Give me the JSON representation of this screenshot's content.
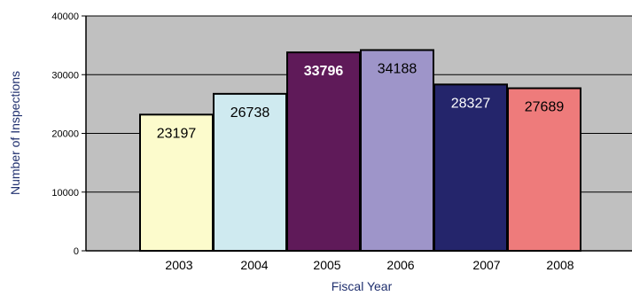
{
  "chart_data": {
    "type": "bar",
    "title": "",
    "xlabel": "Fiscal Year",
    "ylabel": "Number of Inspections",
    "categories": [
      "2003",
      "2004",
      "2005",
      "2006",
      "2007",
      "2008"
    ],
    "values": [
      23197,
      26738,
      33796,
      34188,
      28327,
      27689
    ],
    "ylim": [
      0,
      40000
    ],
    "yticks": [
      0,
      10000,
      20000,
      30000,
      40000
    ],
    "ytick_labels": [
      "0",
      "10000",
      "20000",
      "30000",
      "40000"
    ],
    "bar_colors": [
      "#fcfbcc",
      "#cfeaf0",
      "#5f1a59",
      "#9e95c9",
      "#24256b",
      "#ee7b7b"
    ],
    "label_colors": [
      "#000000",
      "#000000",
      "#ffffff",
      "#000000",
      "#ffffff",
      "#000000"
    ],
    "label_bold": [
      false,
      false,
      true,
      false,
      false,
      false
    ],
    "plot_background": "#c0c0c0",
    "grid": true,
    "legend": "none"
  }
}
